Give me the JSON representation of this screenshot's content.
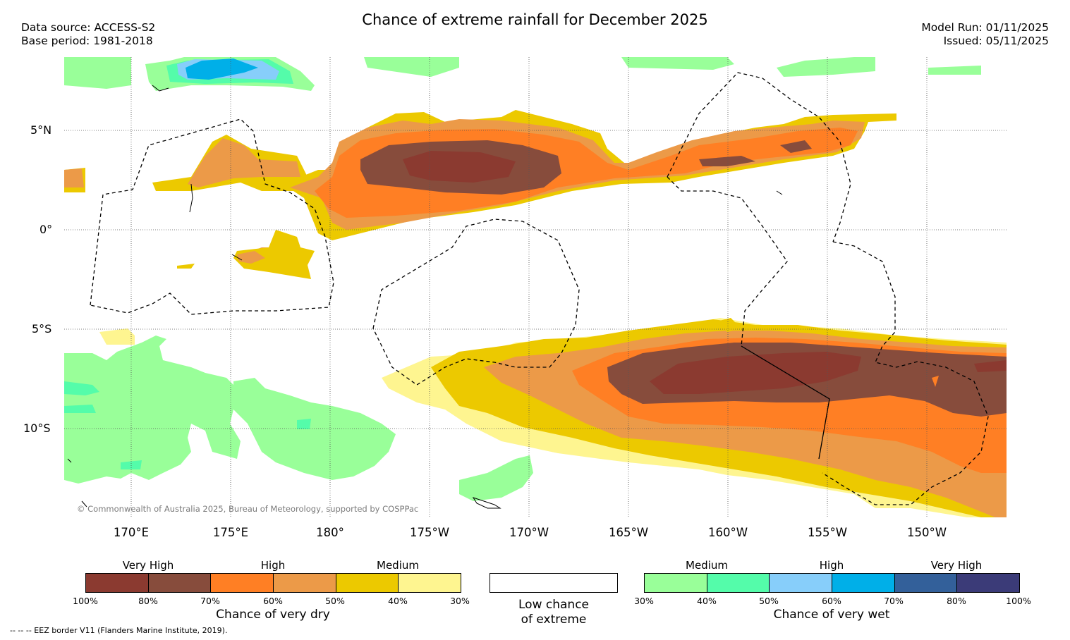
{
  "header": {
    "title": "Chance of extreme rainfall for December 2025",
    "data_source": "Data source: ACCESS-S2",
    "base_period": "Base period: 1981-2018",
    "model_run": "Model Run: 01/11/2025",
    "issued": "Issued: 05/11/2025"
  },
  "map": {
    "lat_labels": [
      "5°N",
      "0°",
      "5°S",
      "10°S"
    ],
    "lon_labels": [
      "170°E",
      "175°E",
      "180°",
      "175°W",
      "170°W",
      "165°W",
      "160°W",
      "155°W",
      "150°W"
    ],
    "copyright": "© Commonwealth of Australia 2025, Bureau of Meteorology, supported by COSPPac",
    "colors": {
      "dry_100_80": "#8b3a30",
      "dry_80_70": "#874c3c",
      "dry_70_60": "#ff7f24",
      "dry_60_50": "#ec9a48",
      "dry_50_40": "#ecc900",
      "dry_40_30": "#fef590",
      "wet_30_40": "#99ff99",
      "wet_40_50": "#54fcaa",
      "wet_50_60": "#87cefa",
      "wet_60_70": "#00afe8",
      "wet_70_80": "#33609a",
      "wet_80_100": "#3b3b78"
    }
  },
  "legend": {
    "dry": {
      "categories": [
        "Very High",
        "High",
        "Medium"
      ],
      "ticks": [
        "100%",
        "80%",
        "70%",
        "60%",
        "50%",
        "40%",
        "30%"
      ],
      "caption": "Chance of very dry",
      "swatches": [
        "#8b3a30",
        "#874c3c",
        "#ff7f24",
        "#ec9a48",
        "#ecc900",
        "#fef590"
      ]
    },
    "low": {
      "caption_line1": "Low chance",
      "caption_line2": "of extreme",
      "swatch": "#ffffff"
    },
    "wet": {
      "categories": [
        "Medium",
        "High",
        "Very High"
      ],
      "ticks": [
        "30%",
        "40%",
        "50%",
        "60%",
        "70%",
        "80%",
        "100%"
      ],
      "caption": "Chance of very wet",
      "swatches": [
        "#99ff99",
        "#54fcaa",
        "#87cefa",
        "#00afe8",
        "#33609a",
        "#3b3b78"
      ]
    }
  },
  "footer": {
    "eez_note": "--  --  -- EEZ border V11 (Flanders Marine Institute, 2019)."
  }
}
